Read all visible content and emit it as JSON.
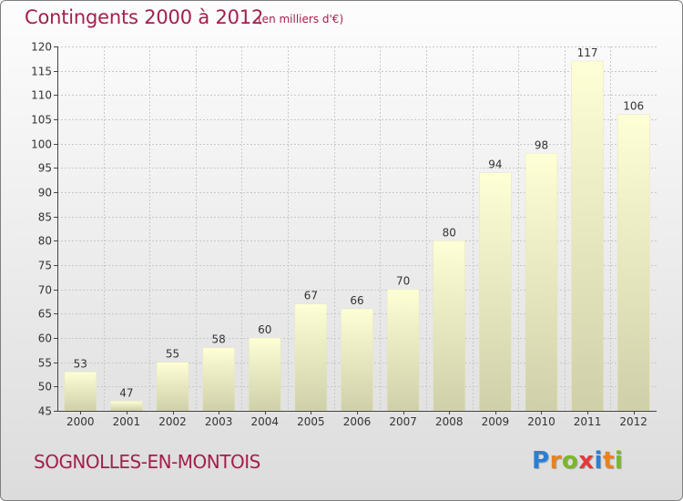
{
  "title": "Contingents 2000 à 2012",
  "subtitle": "(en milliers d'€)",
  "commune": "SOGNOLLES-EN-MONTOIS",
  "logo": {
    "text": "Proxiti",
    "letters": [
      {
        "ch": "P",
        "color": "#2a7fd4"
      },
      {
        "ch": "r",
        "color": "#e8821e"
      },
      {
        "ch": "o",
        "color": "#79b829"
      },
      {
        "ch": "x",
        "color": "#e23a3a"
      },
      {
        "ch": "i",
        "color": "#2a7fd4"
      },
      {
        "ch": "t",
        "color": "#e8821e"
      },
      {
        "ch": "i",
        "color": "#79b829"
      }
    ]
  },
  "colors": {
    "title": "#a3204a",
    "bar_top": "#ffffd6",
    "bar_bottom": "#cfcfa9",
    "grid": "#c8c8c8",
    "axis": "#444444"
  },
  "chart_data": {
    "type": "bar",
    "title": "Contingents 2000 à 2012",
    "subtitle": "(en milliers d'€)",
    "categories": [
      "2000",
      "2001",
      "2002",
      "2003",
      "2004",
      "2005",
      "2006",
      "2007",
      "2008",
      "2009",
      "2010",
      "2011",
      "2012"
    ],
    "values": [
      53,
      47,
      55,
      58,
      60,
      67,
      66,
      70,
      80,
      94,
      98,
      117,
      106
    ],
    "ylim": [
      45,
      120
    ],
    "yticks": [
      45,
      50,
      55,
      60,
      65,
      70,
      75,
      80,
      85,
      90,
      95,
      100,
      105,
      110,
      115,
      120
    ],
    "grid": true,
    "data_labels": true
  }
}
